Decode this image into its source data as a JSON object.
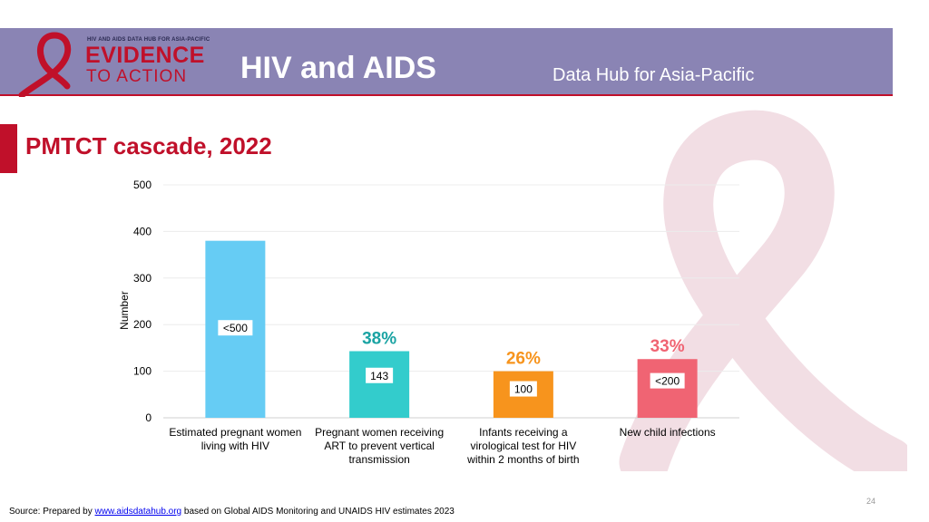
{
  "header": {
    "logo_small_text": "HIV AND AIDS DATA HUB FOR ASIA-PACIFIC",
    "logo_line1": "EVIDENCE",
    "logo_line2": "TO ACTION",
    "title": "HIV and AIDS",
    "subtitle": "Data Hub for Asia-Pacific"
  },
  "section_title": "PMTCT cascade, 2022",
  "source": {
    "prefix": "Source: Prepared by ",
    "link": "www.aidsdatahub.org",
    "suffix": "  based on Global AIDS Monitoring and UNAIDS HIV estimates 2023"
  },
  "page_number": "24",
  "colors": {
    "header_bg": "#8a84b4",
    "brand_red": "#c0102a",
    "ribbon_pink": "#ecd0d8"
  },
  "chart_data": {
    "type": "bar",
    "categories": [
      [
        "Estimated pregnant women",
        "living with HIV"
      ],
      [
        "Pregnant women receiving",
        "ART to prevent vertical",
        "transmission"
      ],
      [
        "Infants receiving a",
        "virological test for HIV",
        "within 2 months of birth"
      ],
      [
        "New child infections"
      ]
    ],
    "values": [
      380,
      143,
      100,
      126
    ],
    "data_labels": [
      "<500",
      "143",
      "100",
      "<200"
    ],
    "percent_labels": [
      "",
      "38%",
      "26%",
      "33%"
    ],
    "bar_colors": [
      "#66ccf4",
      "#33cccc",
      "#f7941d",
      "#f06473"
    ],
    "percent_colors": [
      "",
      "#1aa3a3",
      "#f7941d",
      "#f06473"
    ],
    "ylabel": "Number",
    "xlabel": "",
    "ylim": [
      0,
      500
    ],
    "yticks": [
      0,
      100,
      200,
      300,
      400,
      500
    ],
    "grid": true
  }
}
